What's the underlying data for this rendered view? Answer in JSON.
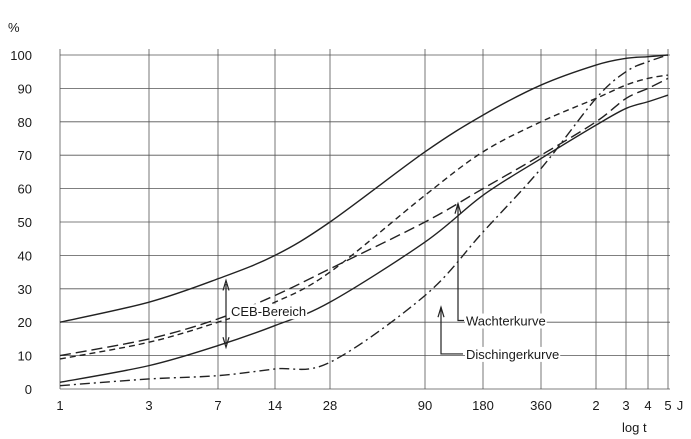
{
  "chart_data": {
    "type": "line",
    "ylabel": "%",
    "xlabel": "log t",
    "y_ticks": [
      0,
      10,
      20,
      30,
      40,
      50,
      60,
      70,
      80,
      90,
      100
    ],
    "ylim": [
      0,
      100
    ],
    "x_ticks": [
      "1",
      "3",
      "7",
      "14",
      "28",
      "90",
      "180",
      "360",
      "2",
      "3",
      "4",
      "5",
      "J"
    ],
    "x_scale": "log",
    "grid": true,
    "series": [
      {
        "name": "",
        "style": "solid",
        "color": "#222222",
        "points": [
          [
            "1",
            20
          ],
          [
            "3",
            26
          ],
          [
            "7",
            33
          ],
          [
            "14",
            40
          ],
          [
            "28",
            50
          ],
          [
            "90",
            71
          ],
          [
            "180",
            82
          ],
          [
            "360",
            91
          ],
          [
            "2",
            97
          ],
          [
            "3",
            99
          ],
          [
            "4",
            99.5
          ],
          [
            "5",
            100
          ]
        ]
      },
      {
        "name": "",
        "style": "solid",
        "color": "#222222",
        "points": [
          [
            "1",
            2
          ],
          [
            "3",
            7
          ],
          [
            "7",
            13
          ],
          [
            "14",
            19
          ],
          [
            "28",
            26
          ],
          [
            "90",
            44
          ],
          [
            "180",
            58
          ],
          [
            "360",
            69
          ],
          [
            "2",
            79
          ],
          [
            "3",
            84
          ],
          [
            "4",
            86
          ],
          [
            "5",
            88
          ]
        ]
      },
      {
        "name": "",
        "style": "dashed-light",
        "color": "#888888",
        "points": [
          [
            "1",
            9
          ],
          [
            "3",
            14
          ],
          [
            "7",
            20
          ],
          [
            "14",
            26
          ],
          [
            "28",
            35
          ],
          [
            "90",
            58
          ],
          [
            "180",
            71
          ],
          [
            "360",
            80
          ],
          [
            "2",
            87
          ],
          [
            "3",
            91
          ],
          [
            "4",
            93
          ],
          [
            "5",
            94
          ]
        ]
      },
      {
        "name": "Wachterkurve",
        "style": "dash",
        "color": "#222222",
        "points": [
          [
            "1",
            10
          ],
          [
            "3",
            15
          ],
          [
            "7",
            21
          ],
          [
            "14",
            28
          ],
          [
            "28",
            36
          ],
          [
            "90",
            50
          ],
          [
            "180",
            60
          ],
          [
            "360",
            70
          ],
          [
            "2",
            80
          ],
          [
            "3",
            87
          ],
          [
            "4",
            90
          ],
          [
            "5",
            93
          ]
        ]
      },
      {
        "name": "Dischingerkurve",
        "style": "dash-dot",
        "color": "#222222",
        "points": [
          [
            "1",
            1
          ],
          [
            "3",
            3
          ],
          [
            "7",
            4
          ],
          [
            "14",
            6
          ],
          [
            "28",
            8
          ],
          [
            "90",
            28
          ],
          [
            "180",
            47
          ],
          [
            "360",
            66
          ],
          [
            "2",
            87
          ],
          [
            "3",
            95
          ],
          [
            "4",
            98
          ],
          [
            "5",
            100
          ]
        ]
      }
    ],
    "annotations": [
      {
        "text": "CEB-Bereich",
        "x": "7",
        "y": 23
      },
      {
        "text": "Wachterkurve",
        "x": "180",
        "y": 20
      },
      {
        "text": "Dischingerkurve",
        "x": "180",
        "y": 10
      }
    ]
  }
}
